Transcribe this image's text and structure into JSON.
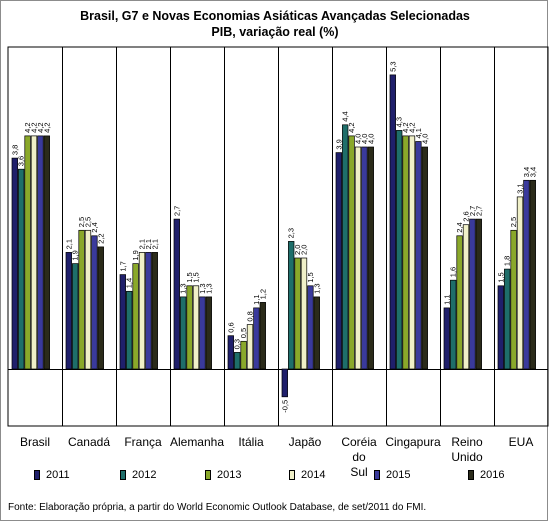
{
  "title": "Brasil, G7 e Novas Economias Asiáticas Avançadas Selecionadas",
  "subtitle": "PIB, variação real (%)",
  "footnote": "Fonte: Elaboração própria, a partir do World Economic Outlook Database, de set/2011 do FMI.",
  "chart_data": {
    "type": "bar",
    "title": "Brasil, G7 e Novas Economias Asiáticas Avançadas Selecionadas",
    "subtitle": "PIB, variação real (%)",
    "categories": [
      "Brasil",
      "Canadá",
      "França",
      "Alemanha",
      "Itália",
      "Japão",
      "Coréia do Sul",
      "Cingapura",
      "Reino Unido",
      "EUA"
    ],
    "series": [
      {
        "name": "2011",
        "color": "#1f1f6b",
        "values": [
          3.8,
          2.1,
          1.7,
          2.7,
          0.6,
          -0.5,
          3.9,
          5.3,
          1.1,
          1.5
        ]
      },
      {
        "name": "2012",
        "color": "#1e6e6a",
        "values": [
          3.6,
          1.9,
          1.4,
          1.3,
          0.3,
          2.3,
          4.4,
          4.3,
          1.6,
          1.8
        ]
      },
      {
        "name": "2013",
        "color": "#8aa82a",
        "values": [
          4.2,
          2.5,
          1.9,
          1.5,
          0.5,
          2.0,
          4.2,
          4.2,
          2.4,
          2.5
        ]
      },
      {
        "name": "2014",
        "color": "#f0f0c8",
        "values": [
          4.2,
          2.5,
          2.1,
          1.5,
          0.8,
          2.0,
          4.0,
          4.2,
          2.6,
          3.1
        ]
      },
      {
        "name": "2015",
        "color": "#3a3a9c",
        "values": [
          4.2,
          2.4,
          2.1,
          1.3,
          1.1,
          1.5,
          4.0,
          4.1,
          2.7,
          3.4
        ]
      },
      {
        "name": "2016",
        "color": "#2b2b1a",
        "values": [
          4.2,
          2.2,
          2.1,
          1.3,
          1.2,
          1.3,
          4.0,
          4.0,
          2.7,
          3.4
        ]
      }
    ],
    "grid": false,
    "legend": "bottom"
  }
}
